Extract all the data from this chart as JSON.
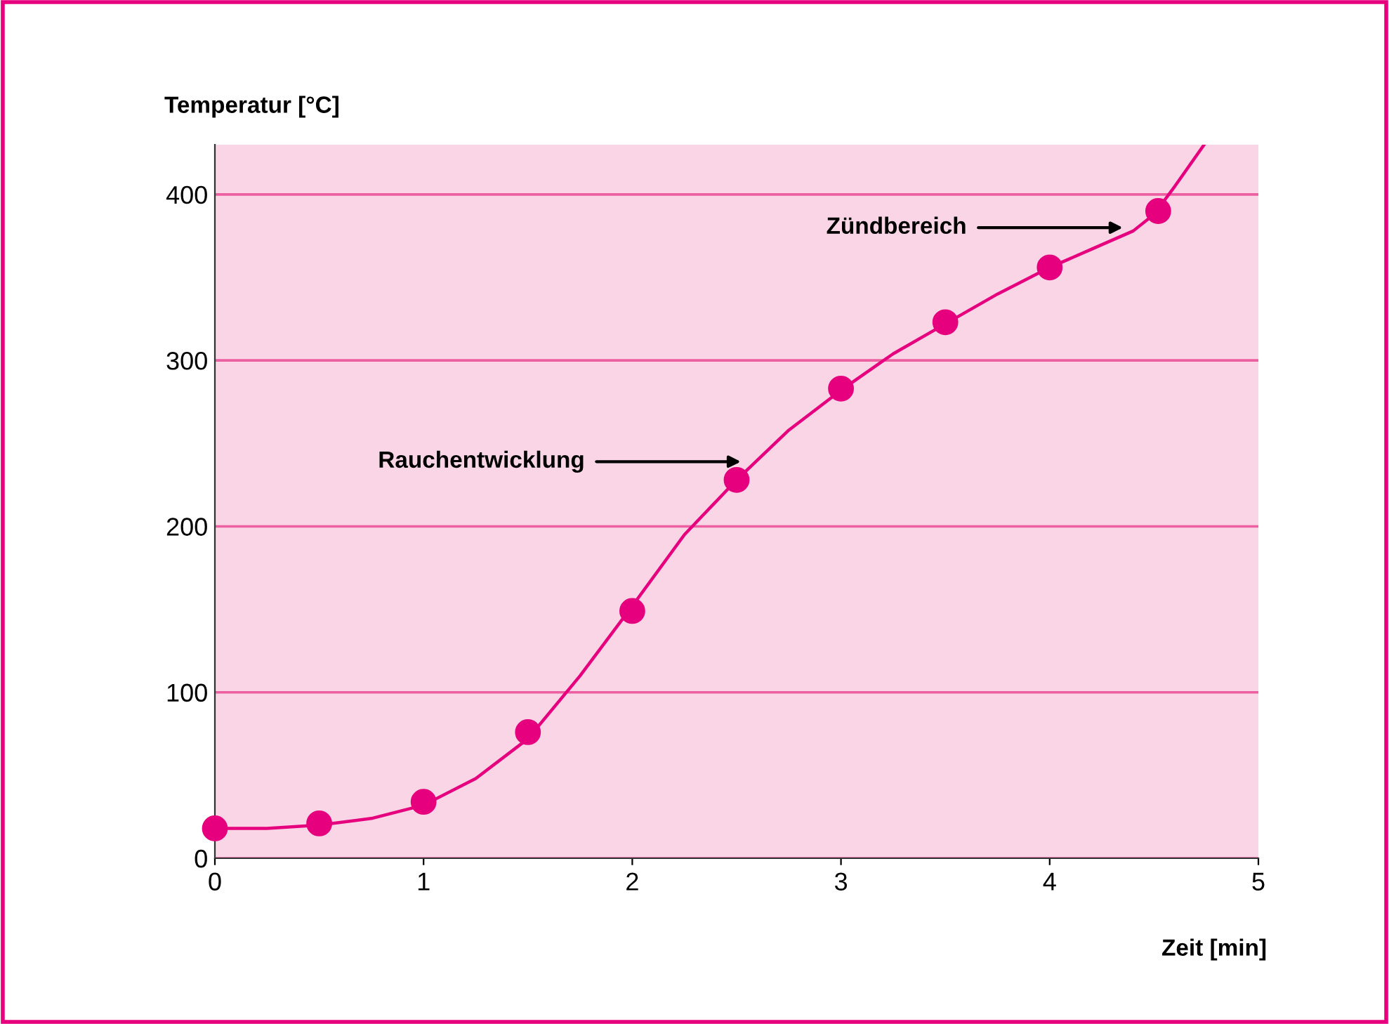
{
  "chart_data": {
    "type": "line",
    "xlabel": "Zeit [min]",
    "ylabel": "Temperatur [°C]",
    "xlim": [
      0,
      5
    ],
    "ylim": [
      0,
      430
    ],
    "xticks": [
      0,
      1,
      2,
      3,
      4,
      5
    ],
    "yticks": [
      0,
      100,
      200,
      300,
      400
    ],
    "grid": "y",
    "series": [
      {
        "color": "#e6007e",
        "marker": "none",
        "x": [
          0,
          0.25,
          0.5,
          0.75,
          1,
          1.25,
          1.5,
          1.75,
          2,
          2.25,
          2.5,
          2.75,
          3,
          3.25,
          3.5,
          3.75,
          4,
          4.2,
          4.4,
          4.5,
          4.6,
          4.74
        ],
        "values": [
          18,
          18,
          20,
          24,
          32,
          48,
          72,
          110,
          152,
          195,
          228,
          258,
          282,
          304,
          322,
          340,
          356,
          367,
          378,
          388,
          405,
          430
        ]
      },
      {
        "type": "scatter",
        "color": "#e6007e",
        "marker": "circle",
        "x": [
          0,
          0.5,
          1,
          1.5,
          2,
          2.5,
          3,
          3.5,
          4,
          4.52
        ],
        "values": [
          18,
          21,
          34,
          76,
          149,
          228,
          283,
          323,
          356,
          390
        ]
      }
    ],
    "annotations": [
      {
        "text": "Rauchentwicklung",
        "x": 2.52,
        "y": 239
      },
      {
        "text": "Zündbereich",
        "x": 4.35,
        "y": 380
      }
    ]
  }
}
